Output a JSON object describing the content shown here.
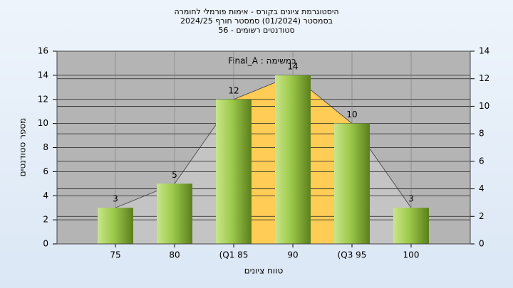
{
  "chart_data": {
    "type": "bar",
    "title": [
      "היסטוגרמת ציונים בקורס - אימות פורמלי לחומרה",
      "בסמסטר  (01/2024)  סמסטר חורף 2024/25",
      "סטודנטים רשומים - 56"
    ],
    "annotation": "Final_A : במשימה",
    "x_label": "טווח ציונים",
    "y_label": "מספר סטודנטים",
    "categories": [
      "75",
      "80",
      "(Q1 85",
      "90",
      "(Q3 95",
      "100"
    ],
    "values": [
      3,
      5,
      12,
      14,
      10,
      3
    ],
    "color": "#8fbf3a",
    "ylim": [
      0,
      16
    ],
    "yticks": [
      0,
      2,
      4,
      6,
      8,
      10,
      12,
      14,
      16
    ],
    "y2lim": [
      0,
      14
    ],
    "y2ticks": [
      0,
      2,
      4,
      6,
      8,
      10,
      12,
      14
    ],
    "grid": true
  }
}
